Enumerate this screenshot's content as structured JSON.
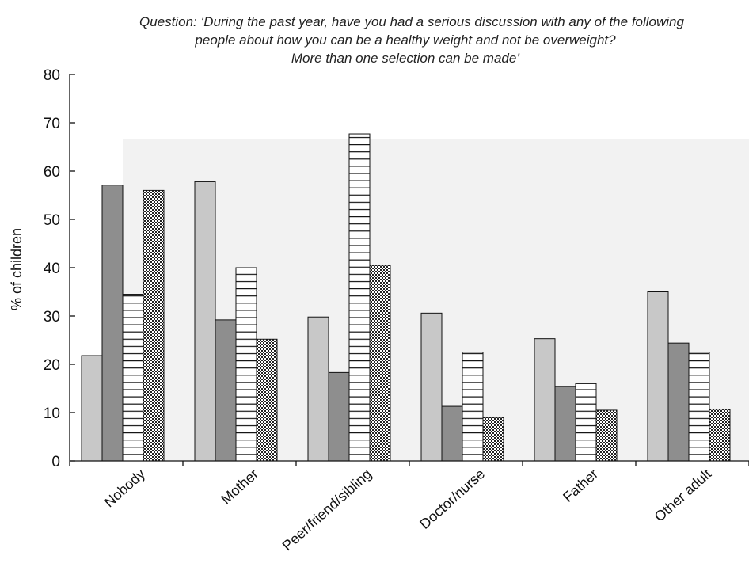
{
  "chart_data": {
    "type": "bar",
    "title_lines": [
      "Question: ‘During the past year, have you had a serious discussion with any of the following",
      "people about how you can be a healthy weight and not be overweight?",
      "More than one selection can be made’"
    ],
    "ylabel": "% of children",
    "xlabel": "",
    "ylim": [
      0,
      80
    ],
    "yticks": [
      0,
      10,
      20,
      30,
      40,
      50,
      60,
      70,
      80
    ],
    "categories": [
      "Nobody",
      "Mother",
      "Peer/friend/sibling",
      "Doctor/nurse",
      "Father",
      "Other adult"
    ],
    "series": [
      {
        "fill": "light-grey",
        "color": "#c8c8c8",
        "values": [
          21.8,
          57.8,
          29.8,
          30.6,
          25.3,
          35.0
        ]
      },
      {
        "fill": "dark-grey",
        "color": "#8e8e8e",
        "values": [
          57.1,
          29.2,
          18.3,
          11.3,
          15.4,
          24.4
        ]
      },
      {
        "fill": "horizontal-lines",
        "color": "#ffffff",
        "values": [
          34.5,
          40.0,
          67.7,
          22.5,
          16.0,
          22.5
        ]
      },
      {
        "fill": "crosshatch",
        "color": "#b0b0b0",
        "values": [
          56.0,
          25.2,
          40.5,
          9.0,
          10.5,
          10.7
        ]
      }
    ],
    "grid": false,
    "legend": "none"
  }
}
